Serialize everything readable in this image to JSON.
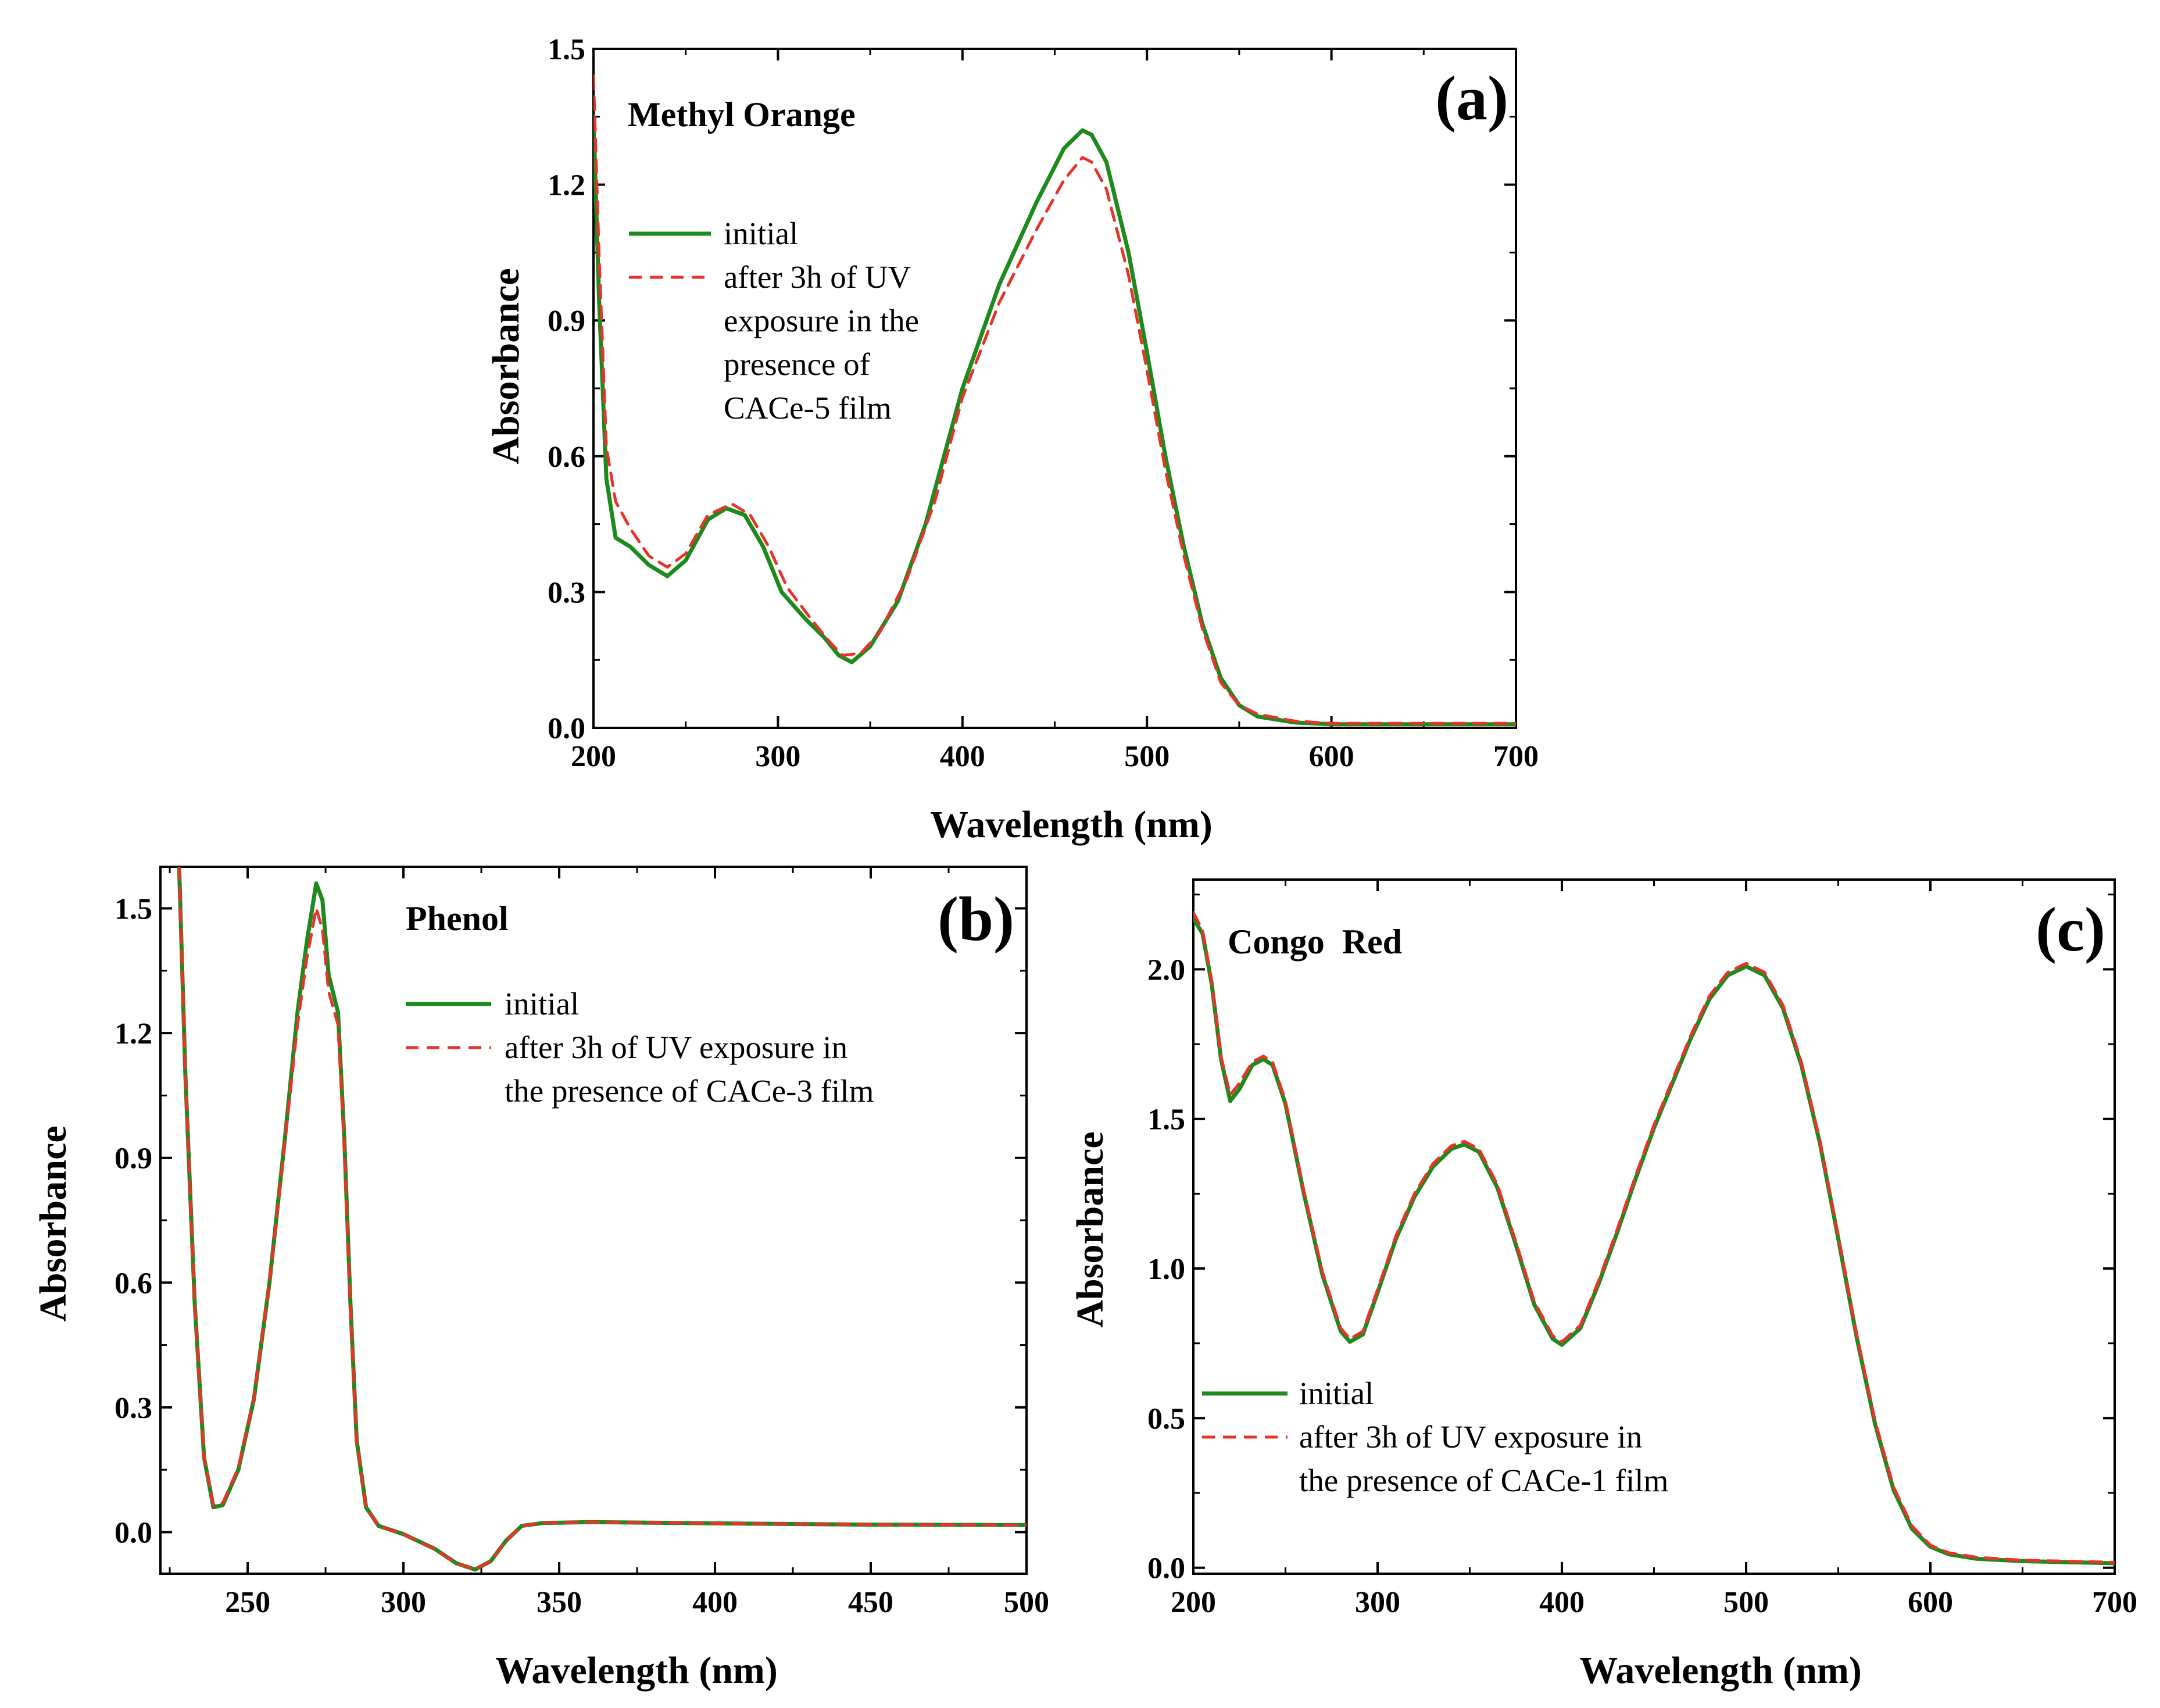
{
  "chart_data": [
    {
      "type": "line",
      "panel": "(a)",
      "title": "Methyl Orange",
      "xlabel": "Wavelength (nm)",
      "ylabel": "Absorbance",
      "xlim": [
        200,
        700
      ],
      "ylim": [
        0.0,
        1.5
      ],
      "xticks": [
        "200",
        "300",
        "400",
        "500",
        "600",
        "700"
      ],
      "yticks": [
        "0.0",
        "0.3",
        "0.6",
        "0.9",
        "1.2",
        "1.5"
      ],
      "legend_position": "upper-left",
      "series": [
        {
          "name": "initial",
          "legend": [
            "initial"
          ],
          "color": "#1e8a1e",
          "dash": "solid",
          "points": [
            [
              200,
              1.35
            ],
            [
              203,
              0.95
            ],
            [
              207,
              0.55
            ],
            [
              212,
              0.42
            ],
            [
              220,
              0.4
            ],
            [
              230,
              0.36
            ],
            [
              240,
              0.335
            ],
            [
              250,
              0.37
            ],
            [
              262,
              0.46
            ],
            [
              272,
              0.485
            ],
            [
              282,
              0.47
            ],
            [
              292,
              0.4
            ],
            [
              302,
              0.3
            ],
            [
              315,
              0.24
            ],
            [
              325,
              0.2
            ],
            [
              333,
              0.16
            ],
            [
              340,
              0.145
            ],
            [
              350,
              0.18
            ],
            [
              365,
              0.28
            ],
            [
              380,
              0.45
            ],
            [
              400,
              0.75
            ],
            [
              420,
              0.98
            ],
            [
              440,
              1.16
            ],
            [
              455,
              1.28
            ],
            [
              465,
              1.32
            ],
            [
              470,
              1.31
            ],
            [
              478,
              1.25
            ],
            [
              490,
              1.05
            ],
            [
              500,
              0.83
            ],
            [
              510,
              0.6
            ],
            [
              520,
              0.4
            ],
            [
              530,
              0.23
            ],
            [
              540,
              0.11
            ],
            [
              550,
              0.05
            ],
            [
              560,
              0.025
            ],
            [
              580,
              0.012
            ],
            [
              600,
              0.008
            ],
            [
              700,
              0.008
            ]
          ]
        },
        {
          "name": "after 3h of UV exposure in the presence of CACe-5 film",
          "legend": [
            "after 3h of UV",
            "exposure in the",
            "presence of",
            "CACe-5 film"
          ],
          "color": "#e8332a",
          "dash": "dashed",
          "points": [
            [
              200,
              1.44
            ],
            [
              203,
              1.05
            ],
            [
              207,
              0.62
            ],
            [
              212,
              0.5
            ],
            [
              220,
              0.44
            ],
            [
              230,
              0.38
            ],
            [
              240,
              0.355
            ],
            [
              250,
              0.385
            ],
            [
              262,
              0.47
            ],
            [
              275,
              0.495
            ],
            [
              285,
              0.47
            ],
            [
              295,
              0.4
            ],
            [
              305,
              0.31
            ],
            [
              318,
              0.24
            ],
            [
              328,
              0.19
            ],
            [
              335,
              0.16
            ],
            [
              345,
              0.165
            ],
            [
              355,
              0.21
            ],
            [
              370,
              0.33
            ],
            [
              385,
              0.5
            ],
            [
              400,
              0.73
            ],
            [
              420,
              0.94
            ],
            [
              440,
              1.1
            ],
            [
              455,
              1.21
            ],
            [
              465,
              1.26
            ],
            [
              470,
              1.25
            ],
            [
              478,
              1.19
            ],
            [
              490,
              1.0
            ],
            [
              500,
              0.79
            ],
            [
              510,
              0.57
            ],
            [
              520,
              0.38
            ],
            [
              530,
              0.22
            ],
            [
              540,
              0.1
            ],
            [
              550,
              0.05
            ],
            [
              560,
              0.03
            ],
            [
              580,
              0.015
            ],
            [
              600,
              0.01
            ],
            [
              700,
              0.01
            ]
          ]
        }
      ]
    },
    {
      "type": "line",
      "panel": "(b)",
      "title": "Phenol",
      "xlabel": "Wavelength (nm)",
      "ylabel": "Absorbance",
      "xlim": [
        222,
        500
      ],
      "ylim": [
        -0.1,
        1.6
      ],
      "xticks": [
        "250",
        "300",
        "350",
        "400",
        "450",
        "500"
      ],
      "yticks": [
        "0.0",
        "0.3",
        "0.6",
        "0.9",
        "1.2",
        "1.5"
      ],
      "legend_position": "upper-center",
      "series": [
        {
          "name": "initial",
          "legend": [
            "initial"
          ],
          "color": "#1e8a1e",
          "dash": "solid",
          "points": [
            [
              228,
              1.6
            ],
            [
              230,
              1.1
            ],
            [
              233,
              0.55
            ],
            [
              236,
              0.18
            ],
            [
              239,
              0.06
            ],
            [
              242,
              0.065
            ],
            [
              247,
              0.15
            ],
            [
              252,
              0.32
            ],
            [
              257,
              0.6
            ],
            [
              262,
              0.95
            ],
            [
              266,
              1.25
            ],
            [
              269,
              1.42
            ],
            [
              272,
              1.56
            ],
            [
              274,
              1.52
            ],
            [
              276,
              1.34
            ],
            [
              279,
              1.25
            ],
            [
              281,
              0.95
            ],
            [
              283,
              0.55
            ],
            [
              285,
              0.22
            ],
            [
              288,
              0.06
            ],
            [
              292,
              0.015
            ],
            [
              300,
              -0.005
            ],
            [
              310,
              -0.04
            ],
            [
              317,
              -0.075
            ],
            [
              323,
              -0.09
            ],
            [
              328,
              -0.07
            ],
            [
              333,
              -0.02
            ],
            [
              338,
              0.015
            ],
            [
              345,
              0.022
            ],
            [
              360,
              0.024
            ],
            [
              400,
              0.021
            ],
            [
              450,
              0.018
            ],
            [
              500,
              0.017
            ]
          ]
        },
        {
          "name": "after 3h of UV exposure in the presence of CACe-3 film",
          "legend": [
            "after 3h of UV exposure in",
            "the presence of CACe-3 film"
          ],
          "color": "#e8332a",
          "dash": "dashed",
          "points": [
            [
              228,
              1.6
            ],
            [
              230,
              1.1
            ],
            [
              233,
              0.55
            ],
            [
              236,
              0.18
            ],
            [
              239,
              0.065
            ],
            [
              242,
              0.07
            ],
            [
              247,
              0.155
            ],
            [
              252,
              0.32
            ],
            [
              257,
              0.6
            ],
            [
              262,
              0.94
            ],
            [
              266,
              1.22
            ],
            [
              269,
              1.38
            ],
            [
              272,
              1.5
            ],
            [
              274,
              1.45
            ],
            [
              276,
              1.3
            ],
            [
              279,
              1.22
            ],
            [
              281,
              0.93
            ],
            [
              283,
              0.54
            ],
            [
              285,
              0.22
            ],
            [
              288,
              0.06
            ],
            [
              292,
              0.015
            ],
            [
              300,
              -0.005
            ],
            [
              310,
              -0.04
            ],
            [
              317,
              -0.075
            ],
            [
              323,
              -0.09
            ],
            [
              328,
              -0.07
            ],
            [
              333,
              -0.02
            ],
            [
              338,
              0.015
            ],
            [
              345,
              0.022
            ],
            [
              360,
              0.024
            ],
            [
              400,
              0.021
            ],
            [
              450,
              0.018
            ],
            [
              500,
              0.017
            ]
          ]
        }
      ]
    },
    {
      "type": "line",
      "panel": "(c)",
      "title": "Congo  Red",
      "xlabel": "Wavelength (nm)",
      "ylabel": "Absorbance",
      "xlim": [
        200,
        700
      ],
      "ylim": [
        -0.02,
        2.3
      ],
      "xticks": [
        "200",
        "300",
        "400",
        "500",
        "600",
        "700"
      ],
      "yticks": [
        "0.0",
        "0.5",
        "1.0",
        "1.5",
        "2.0"
      ],
      "legend_position": "lower-left",
      "series": [
        {
          "name": "initial",
          "legend": [
            "initial"
          ],
          "color": "#1e8a1e",
          "dash": "solid",
          "points": [
            [
              200,
              2.17
            ],
            [
              205,
              2.12
            ],
            [
              210,
              1.95
            ],
            [
              215,
              1.7
            ],
            [
              220,
              1.56
            ],
            [
              225,
              1.6
            ],
            [
              232,
              1.68
            ],
            [
              238,
              1.7
            ],
            [
              243,
              1.68
            ],
            [
              250,
              1.55
            ],
            [
              260,
              1.25
            ],
            [
              270,
              0.98
            ],
            [
              280,
              0.79
            ],
            [
              285,
              0.755
            ],
            [
              292,
              0.78
            ],
            [
              300,
              0.92
            ],
            [
              310,
              1.1
            ],
            [
              320,
              1.24
            ],
            [
              330,
              1.34
            ],
            [
              340,
              1.4
            ],
            [
              347,
              1.415
            ],
            [
              355,
              1.39
            ],
            [
              365,
              1.27
            ],
            [
              375,
              1.08
            ],
            [
              385,
              0.88
            ],
            [
              395,
              0.765
            ],
            [
              400,
              0.745
            ],
            [
              410,
              0.8
            ],
            [
              420,
              0.95
            ],
            [
              430,
              1.12
            ],
            [
              440,
              1.3
            ],
            [
              450,
              1.47
            ],
            [
              460,
              1.62
            ],
            [
              470,
              1.77
            ],
            [
              480,
              1.9
            ],
            [
              490,
              1.98
            ],
            [
              500,
              2.01
            ],
            [
              510,
              1.98
            ],
            [
              520,
              1.87
            ],
            [
              530,
              1.68
            ],
            [
              540,
              1.42
            ],
            [
              550,
              1.1
            ],
            [
              560,
              0.77
            ],
            [
              570,
              0.48
            ],
            [
              580,
              0.26
            ],
            [
              590,
              0.13
            ],
            [
              600,
              0.07
            ],
            [
              610,
              0.045
            ],
            [
              625,
              0.03
            ],
            [
              650,
              0.022
            ],
            [
              700,
              0.015
            ]
          ]
        },
        {
          "name": "after 3h of UV exposure in the presence of CACe-1 film",
          "legend": [
            "after 3h of UV exposure in",
            "the presence of CACe-1 film"
          ],
          "color": "#e8332a",
          "dash": "dashed",
          "points": [
            [
              200,
              2.19
            ],
            [
              205,
              2.13
            ],
            [
              210,
              1.96
            ],
            [
              215,
              1.71
            ],
            [
              220,
              1.58
            ],
            [
              225,
              1.62
            ],
            [
              232,
              1.69
            ],
            [
              238,
              1.71
            ],
            [
              243,
              1.69
            ],
            [
              250,
              1.56
            ],
            [
              260,
              1.26
            ],
            [
              270,
              0.99
            ],
            [
              280,
              0.8
            ],
            [
              285,
              0.765
            ],
            [
              292,
              0.79
            ],
            [
              300,
              0.93
            ],
            [
              310,
              1.11
            ],
            [
              320,
              1.25
            ],
            [
              330,
              1.35
            ],
            [
              340,
              1.41
            ],
            [
              347,
              1.425
            ],
            [
              355,
              1.4
            ],
            [
              365,
              1.28
            ],
            [
              375,
              1.09
            ],
            [
              385,
              0.89
            ],
            [
              395,
              0.775
            ],
            [
              400,
              0.755
            ],
            [
              410,
              0.81
            ],
            [
              420,
              0.96
            ],
            [
              430,
              1.13
            ],
            [
              440,
              1.31
            ],
            [
              450,
              1.48
            ],
            [
              460,
              1.63
            ],
            [
              470,
              1.78
            ],
            [
              480,
              1.91
            ],
            [
              490,
              1.99
            ],
            [
              500,
              2.02
            ],
            [
              510,
              1.99
            ],
            [
              520,
              1.88
            ],
            [
              530,
              1.69
            ],
            [
              540,
              1.43
            ],
            [
              550,
              1.11
            ],
            [
              560,
              0.78
            ],
            [
              570,
              0.49
            ],
            [
              580,
              0.27
            ],
            [
              590,
              0.14
            ],
            [
              600,
              0.075
            ],
            [
              610,
              0.05
            ],
            [
              625,
              0.035
            ],
            [
              650,
              0.025
            ],
            [
              700,
              0.018
            ]
          ]
        }
      ]
    }
  ]
}
